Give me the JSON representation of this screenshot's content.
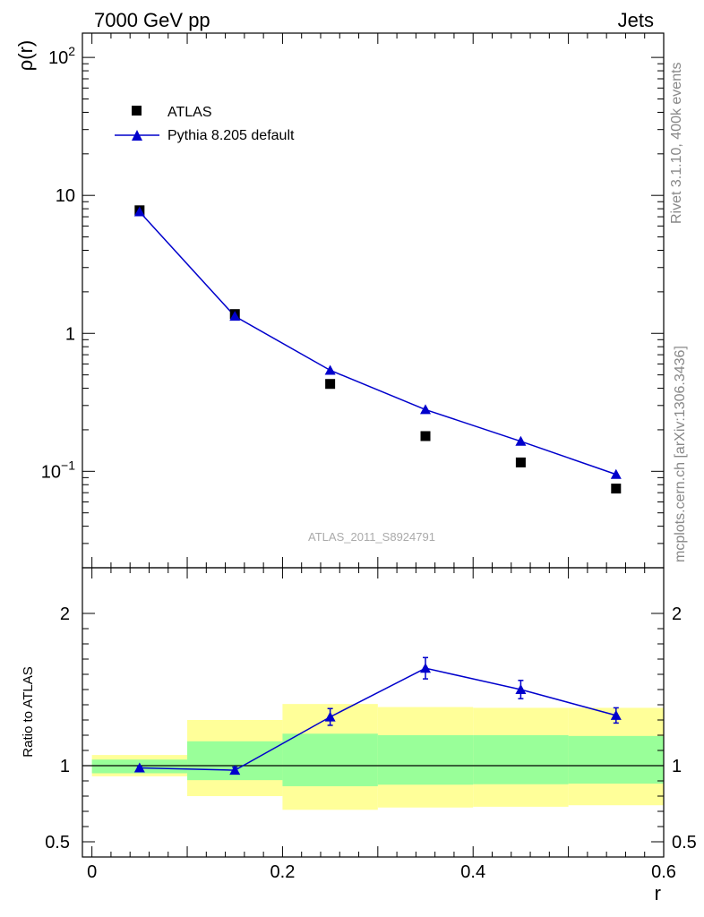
{
  "header": {
    "left": "7000 GeV pp",
    "right": "Jets"
  },
  "side_text": {
    "rivet": "Rivet 3.1.10,  400k events",
    "mcplots": "mcplots.cern.ch [arXiv:1306.3436]"
  },
  "analysis_id": "ATLAS_2011_S8924791",
  "colors": {
    "mc": "#0000cc",
    "data": "#000000",
    "band_inner": "#99ff99",
    "band_outer": "#ffff99"
  },
  "chart_data": [
    {
      "type": "scatter",
      "name": "main",
      "ylabel": "ρ(r)",
      "yscale": "log",
      "ylim": [
        0.02,
        150
      ],
      "xlim": [
        -0.01,
        0.6
      ],
      "y_ticks": [
        {
          "value": 100,
          "base": "10",
          "exp": "2"
        },
        {
          "value": 10,
          "label": "10"
        },
        {
          "value": 1,
          "label": "1"
        },
        {
          "value": 0.1,
          "base": "10",
          "exp": "−1"
        }
      ],
      "x": [
        0.05,
        0.15,
        0.25,
        0.35,
        0.45,
        0.55
      ],
      "series": [
        {
          "name": "ATLAS",
          "marker": "square",
          "values": [
            7.8,
            1.38,
            0.43,
            0.18,
            0.116,
            0.075
          ]
        },
        {
          "name": "Pythia 8.205 default",
          "marker": "triangle",
          "line": true,
          "values": [
            7.6,
            1.33,
            0.54,
            0.28,
            0.165,
            0.095
          ]
        }
      ]
    },
    {
      "type": "line",
      "name": "ratio",
      "ylabel": "Ratio to ATLAS",
      "xlabel": "r",
      "ylim": [
        0.4,
        2.3
      ],
      "y_ticks": [
        {
          "value": 0.5,
          "label": "0.5"
        },
        {
          "value": 1,
          "label": "1"
        },
        {
          "value": 2,
          "label": "2"
        }
      ],
      "x_ticks": [
        {
          "value": 0,
          "label": "0"
        },
        {
          "value": 0.2,
          "label": "0.2"
        },
        {
          "value": 0.4,
          "label": "0.4"
        },
        {
          "value": 0.6,
          "label": "0.6"
        }
      ],
      "bins": [
        [
          0.0,
          0.1
        ],
        [
          0.1,
          0.2
        ],
        [
          0.2,
          0.3
        ],
        [
          0.3,
          0.4
        ],
        [
          0.4,
          0.5
        ],
        [
          0.5,
          0.6
        ]
      ],
      "band_inner": [
        [
          0.95,
          1.04
        ],
        [
          0.905,
          1.16
        ],
        [
          0.865,
          1.21
        ],
        [
          0.875,
          1.2
        ],
        [
          0.878,
          1.2
        ],
        [
          0.882,
          1.195
        ]
      ],
      "band_outer": [
        [
          0.93,
          1.07
        ],
        [
          0.8,
          1.3
        ],
        [
          0.71,
          1.405
        ],
        [
          0.725,
          1.385
        ],
        [
          0.73,
          1.38
        ],
        [
          0.74,
          1.38
        ]
      ],
      "x": [
        0.05,
        0.15,
        0.25,
        0.35,
        0.45,
        0.55
      ],
      "series": [
        {
          "name": "Pythia 8.205 default",
          "values": [
            0.985,
            0.97,
            1.32,
            1.64,
            1.5,
            1.33
          ],
          "err": [
            0.01,
            0.02,
            0.055,
            0.07,
            0.06,
            0.05
          ]
        }
      ]
    }
  ]
}
